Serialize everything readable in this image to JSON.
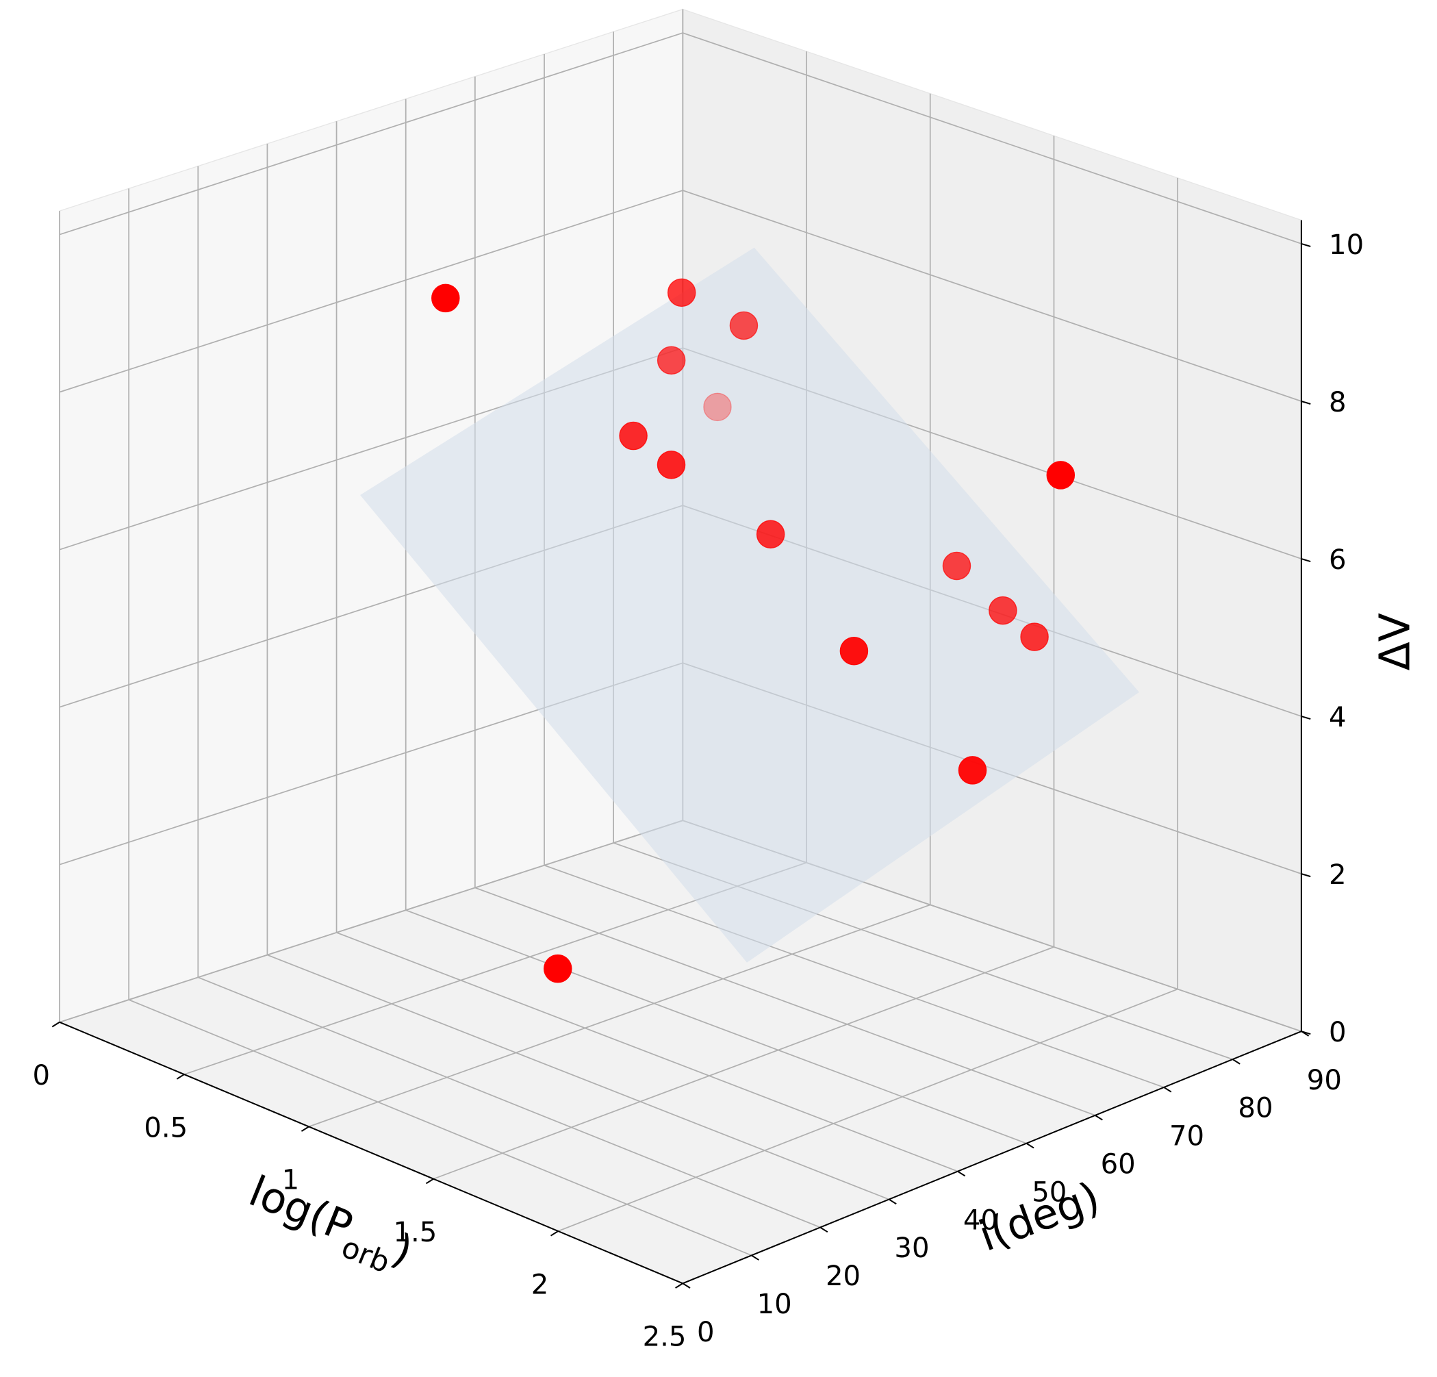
{
  "chart_data": {
    "type": "scatter3d",
    "xlabel": [
      {
        "text": "log(P"
      },
      {
        "text": "orb"
      },
      {
        "text": ")"
      }
    ],
    "ylabel": "i(deg)",
    "zlabel": "ΔV",
    "xlim": [
      0,
      2.5
    ],
    "ylim": [
      0,
      90
    ],
    "zlim": [
      0,
      10.3
    ],
    "xticks": [
      0,
      0.5,
      1,
      1.5,
      2,
      2.5
    ],
    "yticks": [
      0,
      10,
      20,
      30,
      40,
      50,
      60,
      70,
      80,
      90
    ],
    "zticks": [
      0,
      2,
      4,
      6,
      8,
      10
    ],
    "grid": true,
    "series": [
      {
        "color": "#ff0000",
        "x": [
          1.0,
          1.0,
          1.0,
          0.875,
          0.375,
          1.0,
          1.125,
          1.25,
          1.5,
          1.625,
          1.75,
          1.625,
          1.875,
          2.25,
          1.75
        ],
        "y": [
          19.8,
          54,
          63,
          57,
          81.6,
          47,
          48,
          57.9,
          75.9,
          78.1,
          78.2,
          56.5,
          64.7,
          64,
          9
        ],
        "values": [
          9.9,
          8.9,
          8.2,
          7.8,
          5.9,
          7.3,
          7.05,
          6.0,
          5.3,
          4.8,
          4.6,
          5.0,
          3.5,
          7.7,
          2.7
        ]
      }
    ]
  }
}
